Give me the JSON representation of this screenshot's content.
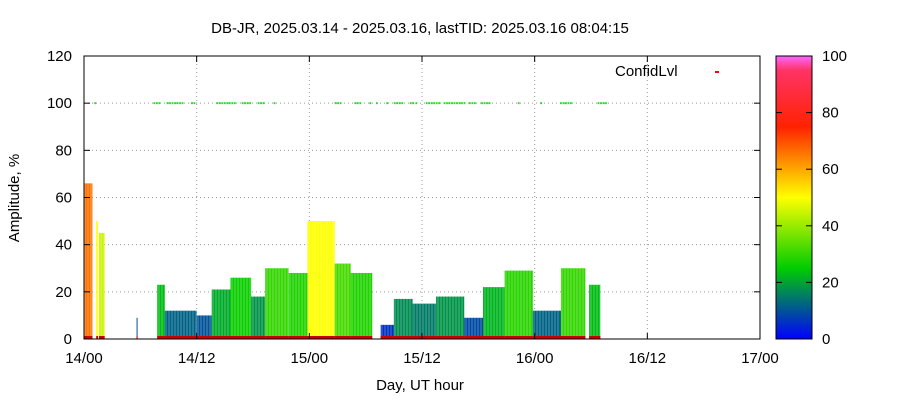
{
  "chart_data": {
    "type": "bar",
    "title": "DB-JR, 2025.03.14 - 2025.03.16, lastTID: 2025.03.16 08:04:15",
    "xlabel": "Day, UT hour",
    "ylabel": "Amplitude, %",
    "xlim": [
      0,
      72
    ],
    "ylim": [
      0,
      120
    ],
    "x_unit": "hours since 14/00",
    "x_ticks": [
      {
        "x": 0,
        "label": "14/00"
      },
      {
        "x": 12,
        "label": "14/12"
      },
      {
        "x": 24,
        "label": "15/00"
      },
      {
        "x": 36,
        "label": "15/12"
      },
      {
        "x": 48,
        "label": "16/00"
      },
      {
        "x": 60,
        "label": "16/12"
      },
      {
        "x": 72,
        "label": "17/00"
      }
    ],
    "y_ticks": [
      0,
      20,
      40,
      60,
      80,
      100,
      120
    ],
    "grid": true,
    "legend": {
      "label": "ConfidLvl",
      "position": "top-right"
    },
    "colorbar": {
      "range": [
        0,
        100
      ],
      "ticks": [
        0,
        20,
        40,
        60,
        80,
        100
      ],
      "stops": [
        "#0000ff",
        "#00cc00",
        "#ffff00",
        "#ff0000",
        "#ff66ff"
      ]
    },
    "amplitude_segments": [
      {
        "x0": 0.0,
        "x1": 0.9,
        "peak": 66
      },
      {
        "x0": 1.3,
        "x1": 1.5,
        "peak": 50
      },
      {
        "x0": 1.6,
        "x1": 2.2,
        "peak": 45
      },
      {
        "x0": 5.6,
        "x1": 5.7,
        "peak": 9
      },
      {
        "x0": 7.8,
        "x1": 8.6,
        "peak": 23
      },
      {
        "x0": 8.6,
        "x1": 12.0,
        "peak": 12
      },
      {
        "x0": 12.0,
        "x1": 13.6,
        "peak": 10
      },
      {
        "x0": 13.6,
        "x1": 15.6,
        "peak": 21
      },
      {
        "x0": 15.6,
        "x1": 17.8,
        "peak": 26
      },
      {
        "x0": 17.8,
        "x1": 19.3,
        "peak": 18
      },
      {
        "x0": 19.3,
        "x1": 21.8,
        "peak": 30
      },
      {
        "x0": 21.8,
        "x1": 23.8,
        "peak": 28
      },
      {
        "x0": 23.8,
        "x1": 26.7,
        "peak": 50
      },
      {
        "x0": 26.7,
        "x1": 28.4,
        "peak": 32
      },
      {
        "x0": 28.4,
        "x1": 30.7,
        "peak": 28
      },
      {
        "x0": 31.6,
        "x1": 33.0,
        "peak": 6
      },
      {
        "x0": 33.0,
        "x1": 35.0,
        "peak": 17
      },
      {
        "x0": 35.0,
        "x1": 37.5,
        "peak": 15
      },
      {
        "x0": 37.5,
        "x1": 40.5,
        "peak": 18
      },
      {
        "x0": 40.5,
        "x1": 42.5,
        "peak": 9
      },
      {
        "x0": 42.5,
        "x1": 44.8,
        "peak": 22
      },
      {
        "x0": 44.8,
        "x1": 47.8,
        "peak": 29
      },
      {
        "x0": 47.8,
        "x1": 50.8,
        "peak": 12
      },
      {
        "x0": 50.8,
        "x1": 53.4,
        "peak": 30
      },
      {
        "x0": 53.8,
        "x1": 55.0,
        "peak": 23
      }
    ],
    "confidence_runs": [
      [
        1.1,
        1.2
      ],
      [
        7.4,
        8.0
      ],
      [
        8.8,
        10.6
      ],
      [
        11.4,
        11.9
      ],
      [
        14.1,
        16.1
      ],
      [
        16.8,
        17.7
      ],
      [
        18.5,
        19.2
      ],
      [
        20.2,
        20.3
      ],
      [
        26.7,
        27.3
      ],
      [
        28.8,
        29.4
      ],
      [
        30.4,
        30.6
      ],
      [
        31.1,
        31.3
      ],
      [
        32.2,
        32.3
      ],
      [
        33.0,
        34.0
      ],
      [
        34.7,
        35.1
      ],
      [
        35.3,
        35.4
      ],
      [
        36.4,
        37.9
      ],
      [
        38.3,
        40.6
      ],
      [
        41.0,
        41.6
      ],
      [
        42.3,
        43.1
      ],
      [
        46.2,
        46.3
      ],
      [
        48.6,
        48.8
      ],
      [
        50.7,
        51.8
      ],
      [
        54.7,
        55.6
      ]
    ],
    "confidence_value": 100
  }
}
